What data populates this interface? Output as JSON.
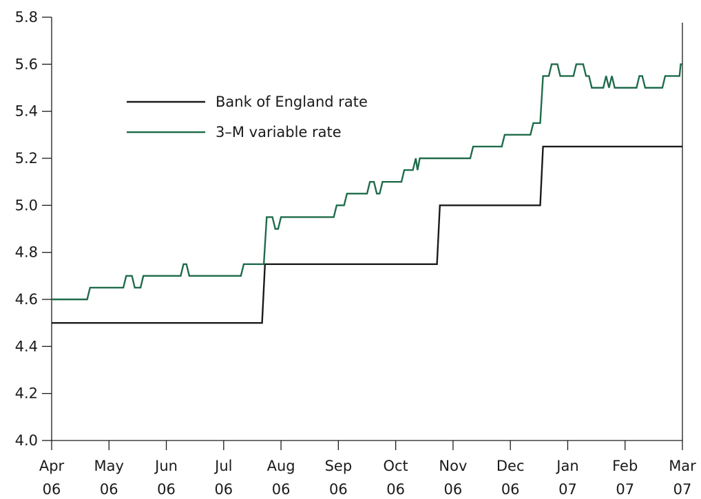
{
  "chart_data": {
    "type": "line",
    "title": "",
    "xlabel": "",
    "ylabel": "",
    "ylim": [
      4.0,
      5.8
    ],
    "yticks": [
      "4.0",
      "4.2",
      "4.4",
      "4.6",
      "4.8",
      "5.0",
      "5.2",
      "5.4",
      "5.6",
      "5.8"
    ],
    "xlim": [
      0,
      11
    ],
    "xticks": [
      {
        "month": "Apr",
        "year": "06"
      },
      {
        "month": "May",
        "year": "06"
      },
      {
        "month": "Jun",
        "year": "06"
      },
      {
        "month": "Jul",
        "year": "06"
      },
      {
        "month": "Aug",
        "year": "06"
      },
      {
        "month": "Sep",
        "year": "06"
      },
      {
        "month": "Oct",
        "year": "06"
      },
      {
        "month": "Nov",
        "year": "06"
      },
      {
        "month": "Dec",
        "year": "06"
      },
      {
        "month": "Jan",
        "year": "07"
      },
      {
        "month": "Feb",
        "year": "07"
      },
      {
        "month": "Mar",
        "year": "07"
      }
    ],
    "grid": false,
    "legend_position": "top-left",
    "series": [
      {
        "name": "Bank of England rate",
        "color": "#1a1a1a",
        "points": [
          [
            0.0,
            4.5
          ],
          [
            3.67,
            4.5
          ],
          [
            3.72,
            4.75
          ],
          [
            6.72,
            4.75
          ],
          [
            6.77,
            5.0
          ],
          [
            8.52,
            5.0
          ],
          [
            8.57,
            5.25
          ],
          [
            11.0,
            5.25
          ]
        ]
      },
      {
        "name": "3–M variable rate",
        "color": "#1e6b4a",
        "points": [
          [
            0.0,
            4.6
          ],
          [
            0.62,
            4.6
          ],
          [
            0.67,
            4.65
          ],
          [
            1.25,
            4.65
          ],
          [
            1.3,
            4.7
          ],
          [
            1.4,
            4.7
          ],
          [
            1.45,
            4.65
          ],
          [
            1.55,
            4.65
          ],
          [
            1.6,
            4.7
          ],
          [
            2.25,
            4.7
          ],
          [
            2.3,
            4.75
          ],
          [
            2.35,
            4.75
          ],
          [
            2.4,
            4.7
          ],
          [
            3.3,
            4.7
          ],
          [
            3.35,
            4.75
          ],
          [
            3.7,
            4.75
          ],
          [
            3.75,
            4.95
          ],
          [
            3.85,
            4.95
          ],
          [
            3.9,
            4.9
          ],
          [
            3.95,
            4.9
          ],
          [
            4.0,
            4.95
          ],
          [
            4.92,
            4.95
          ],
          [
            4.97,
            5.0
          ],
          [
            5.1,
            5.0
          ],
          [
            5.15,
            5.05
          ],
          [
            5.5,
            5.05
          ],
          [
            5.55,
            5.1
          ],
          [
            5.62,
            5.1
          ],
          [
            5.67,
            5.05
          ],
          [
            5.72,
            5.05
          ],
          [
            5.77,
            5.1
          ],
          [
            6.1,
            5.1
          ],
          [
            6.15,
            5.15
          ],
          [
            6.3,
            5.15
          ],
          [
            6.35,
            5.2
          ],
          [
            6.38,
            5.15
          ],
          [
            6.42,
            5.2
          ],
          [
            7.3,
            5.2
          ],
          [
            7.35,
            5.25
          ],
          [
            7.85,
            5.25
          ],
          [
            7.9,
            5.3
          ],
          [
            8.35,
            5.3
          ],
          [
            8.4,
            5.35
          ],
          [
            8.52,
            5.35
          ],
          [
            8.57,
            5.55
          ],
          [
            8.67,
            5.55
          ],
          [
            8.72,
            5.6
          ],
          [
            8.82,
            5.6
          ],
          [
            8.87,
            5.55
          ],
          [
            9.1,
            5.55
          ],
          [
            9.15,
            5.6
          ],
          [
            9.27,
            5.6
          ],
          [
            9.32,
            5.55
          ],
          [
            9.37,
            5.55
          ],
          [
            9.42,
            5.5
          ],
          [
            9.62,
            5.5
          ],
          [
            9.67,
            5.55
          ],
          [
            9.72,
            5.5
          ],
          [
            9.77,
            5.55
          ],
          [
            9.82,
            5.5
          ],
          [
            10.2,
            5.5
          ],
          [
            10.25,
            5.55
          ],
          [
            10.3,
            5.55
          ],
          [
            10.35,
            5.5
          ],
          [
            10.65,
            5.5
          ],
          [
            10.7,
            5.55
          ],
          [
            10.95,
            5.55
          ],
          [
            10.97,
            5.6
          ],
          [
            11.0,
            5.6
          ]
        ]
      }
    ]
  }
}
